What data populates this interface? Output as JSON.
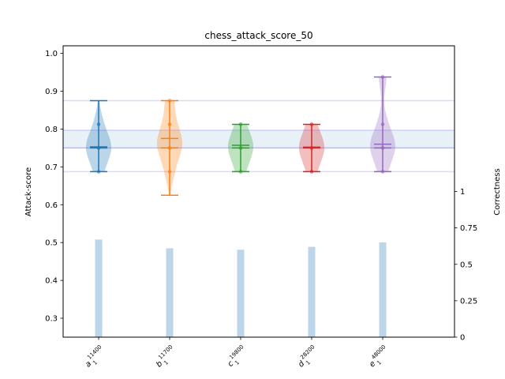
{
  "chart_data": {
    "type": "violin",
    "title": "chess_attack_score_50",
    "ylabel": "Attack-score",
    "ylabel_right": "Correctness",
    "ylim": [
      0.25,
      1.02
    ],
    "yticks": [
      0.3,
      0.4,
      0.5,
      0.6,
      0.7,
      0.8,
      0.9,
      1.0
    ],
    "right_ylim": [
      0,
      2.0
    ],
    "right_yticks": [
      0,
      0.25,
      0.5,
      0.75,
      1
    ],
    "right_ytick_labels": [
      "0",
      "0.25",
      "0.5",
      "0.75",
      "1"
    ],
    "reference_band": [
      0.75,
      0.797
    ],
    "reference_lines": [
      0.875,
      0.6875
    ],
    "grid": false,
    "categories": [
      {
        "main": "a",
        "sup": "11400",
        "sub": "1",
        "color": "#1f77b4",
        "min": 0.6875,
        "max": 0.875,
        "mean": 0.75,
        "median": 0.753,
        "points": [
          0.8125,
          0.75,
          0.6875
        ]
      },
      {
        "main": "b",
        "sup": "11700",
        "sub": "1",
        "color": "#ff7f0e",
        "min": 0.625,
        "max": 0.875,
        "mean": 0.775,
        "median": 0.75,
        "points": [
          0.8125,
          0.75,
          0.875,
          0.6875
        ]
      },
      {
        "main": "c",
        "sup": "19800",
        "sub": "1",
        "color": "#2ca02c",
        "min": 0.6875,
        "max": 0.8125,
        "mean": 0.757,
        "median": 0.75,
        "points": [
          0.8125,
          0.75,
          0.6875
        ]
      },
      {
        "main": "d",
        "sup": "28200",
        "sub": "1",
        "color": "#d62728",
        "min": 0.6875,
        "max": 0.8125,
        "mean": 0.752,
        "median": 0.75,
        "points": [
          0.8125,
          0.75,
          0.6875
        ]
      },
      {
        "main": "e",
        "sup": "48000",
        "sub": "1",
        "color": "#9467bd",
        "min": 0.6875,
        "max": 0.9375,
        "mean": 0.76,
        "median": 0.75,
        "points": [
          0.8125,
          0.75,
          0.9375,
          0.6875
        ]
      }
    ],
    "correctness": [
      0.67,
      0.61,
      0.6,
      0.62,
      0.65
    ]
  }
}
